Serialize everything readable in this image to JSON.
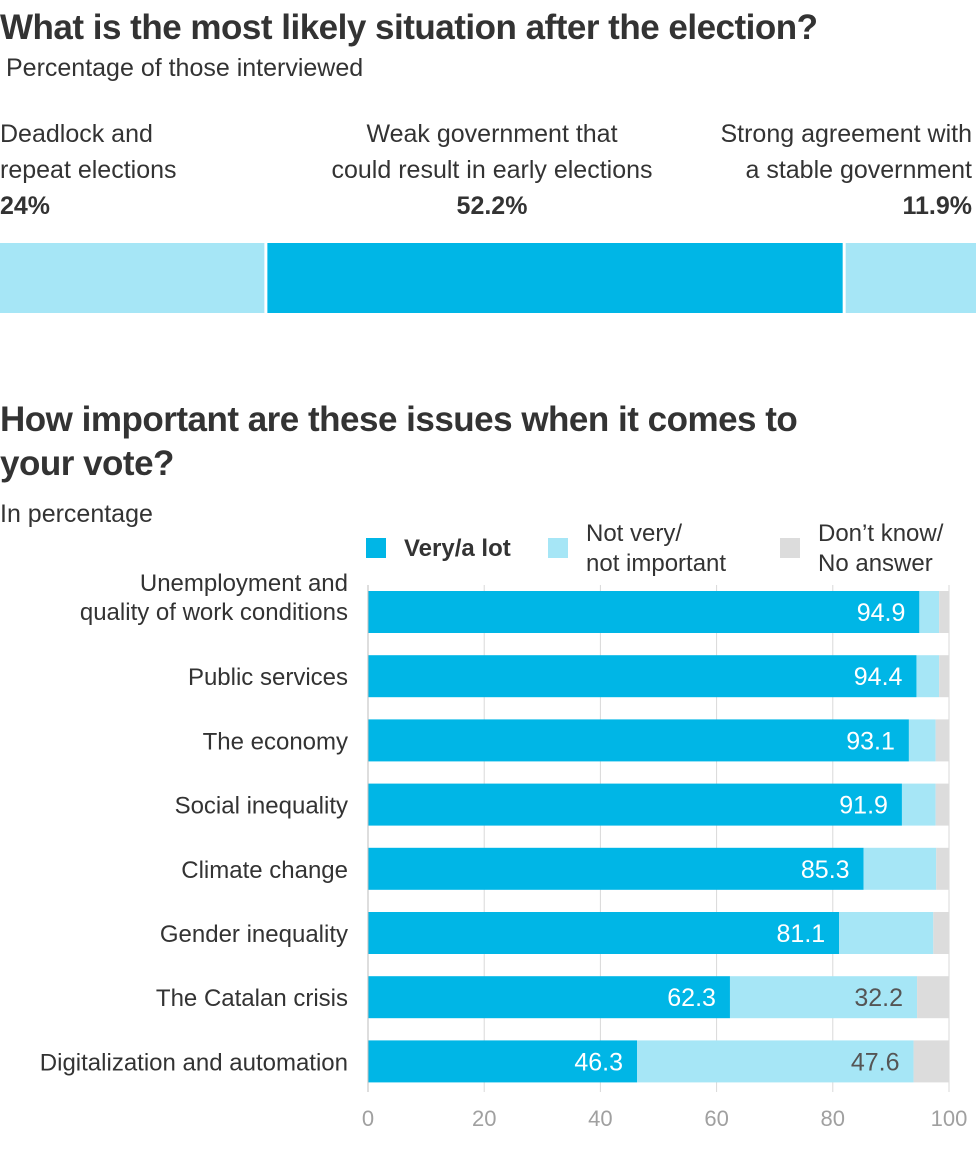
{
  "chart_data": [
    {
      "type": "bar",
      "orientation": "horizontal-stacked-single",
      "title": "What is the most likely situation after the election?",
      "subtitle": "Percentage of those interviewed",
      "segments": [
        {
          "label_lines": [
            "Deadlock and",
            "repeat elections"
          ],
          "value": 24,
          "value_label": "24%",
          "color": "#a6e6f6"
        },
        {
          "label_lines": [
            "Weak government that",
            "could result in early elections"
          ],
          "value": 52.2,
          "value_label": "52.2%",
          "color": "#00b6e6"
        },
        {
          "label_lines": [
            "Strong agreement with",
            "a stable government"
          ],
          "value": 11.9,
          "value_label": "11.9%",
          "color": "#a6e6f6"
        }
      ]
    },
    {
      "type": "bar",
      "orientation": "horizontal-stacked",
      "title_lines": [
        "How important are these issues when it comes to",
        "your vote?"
      ],
      "subtitle": "In percentage",
      "legend": [
        {
          "lines": [
            "Very/a lot"
          ],
          "color": "#00b6e6",
          "bold": true
        },
        {
          "lines": [
            "Not very/",
            "not important"
          ],
          "color": "#a6e6f6",
          "bold": false
        },
        {
          "lines": [
            "Don’t know/",
            "No answer"
          ],
          "color": "#dcdcdc",
          "bold": false
        }
      ],
      "categories": [
        [
          "Unemployment and",
          "quality of work conditions"
        ],
        [
          "Public services"
        ],
        [
          "The economy"
        ],
        [
          "Social inequality"
        ],
        [
          "Climate change"
        ],
        [
          "Gender inequality"
        ],
        [
          "The Catalan crisis"
        ],
        [
          "Digitalization and automation"
        ]
      ],
      "series": [
        {
          "name": "Very/a lot",
          "values": [
            94.9,
            94.4,
            93.1,
            91.9,
            85.3,
            81.1,
            62.3,
            46.3
          ],
          "labels": [
            "94.9",
            "94.4",
            "93.1",
            "91.9",
            "85.3",
            "81.1",
            "62.3",
            "46.3"
          ]
        },
        {
          "name": "Not very/not important",
          "values": [
            3.4,
            3.9,
            4.6,
            5.8,
            12.5,
            16.2,
            32.2,
            47.6
          ],
          "labels": [
            "",
            "",
            "",
            "",
            "",
            "",
            "32.2",
            "47.6"
          ]
        },
        {
          "name": "Don't know/No answer",
          "values": [
            1.7,
            1.7,
            2.3,
            2.3,
            2.2,
            2.7,
            5.5,
            6.1
          ],
          "labels": [
            "",
            "",
            "",
            "",
            "",
            "",
            "",
            ""
          ]
        }
      ],
      "xlim": [
        0,
        100
      ],
      "xticks": [
        0,
        20,
        40,
        60,
        80,
        100
      ],
      "xtick_labels": [
        "0",
        "20",
        "40",
        "60",
        "80",
        "100"
      ],
      "grid": true
    }
  ]
}
